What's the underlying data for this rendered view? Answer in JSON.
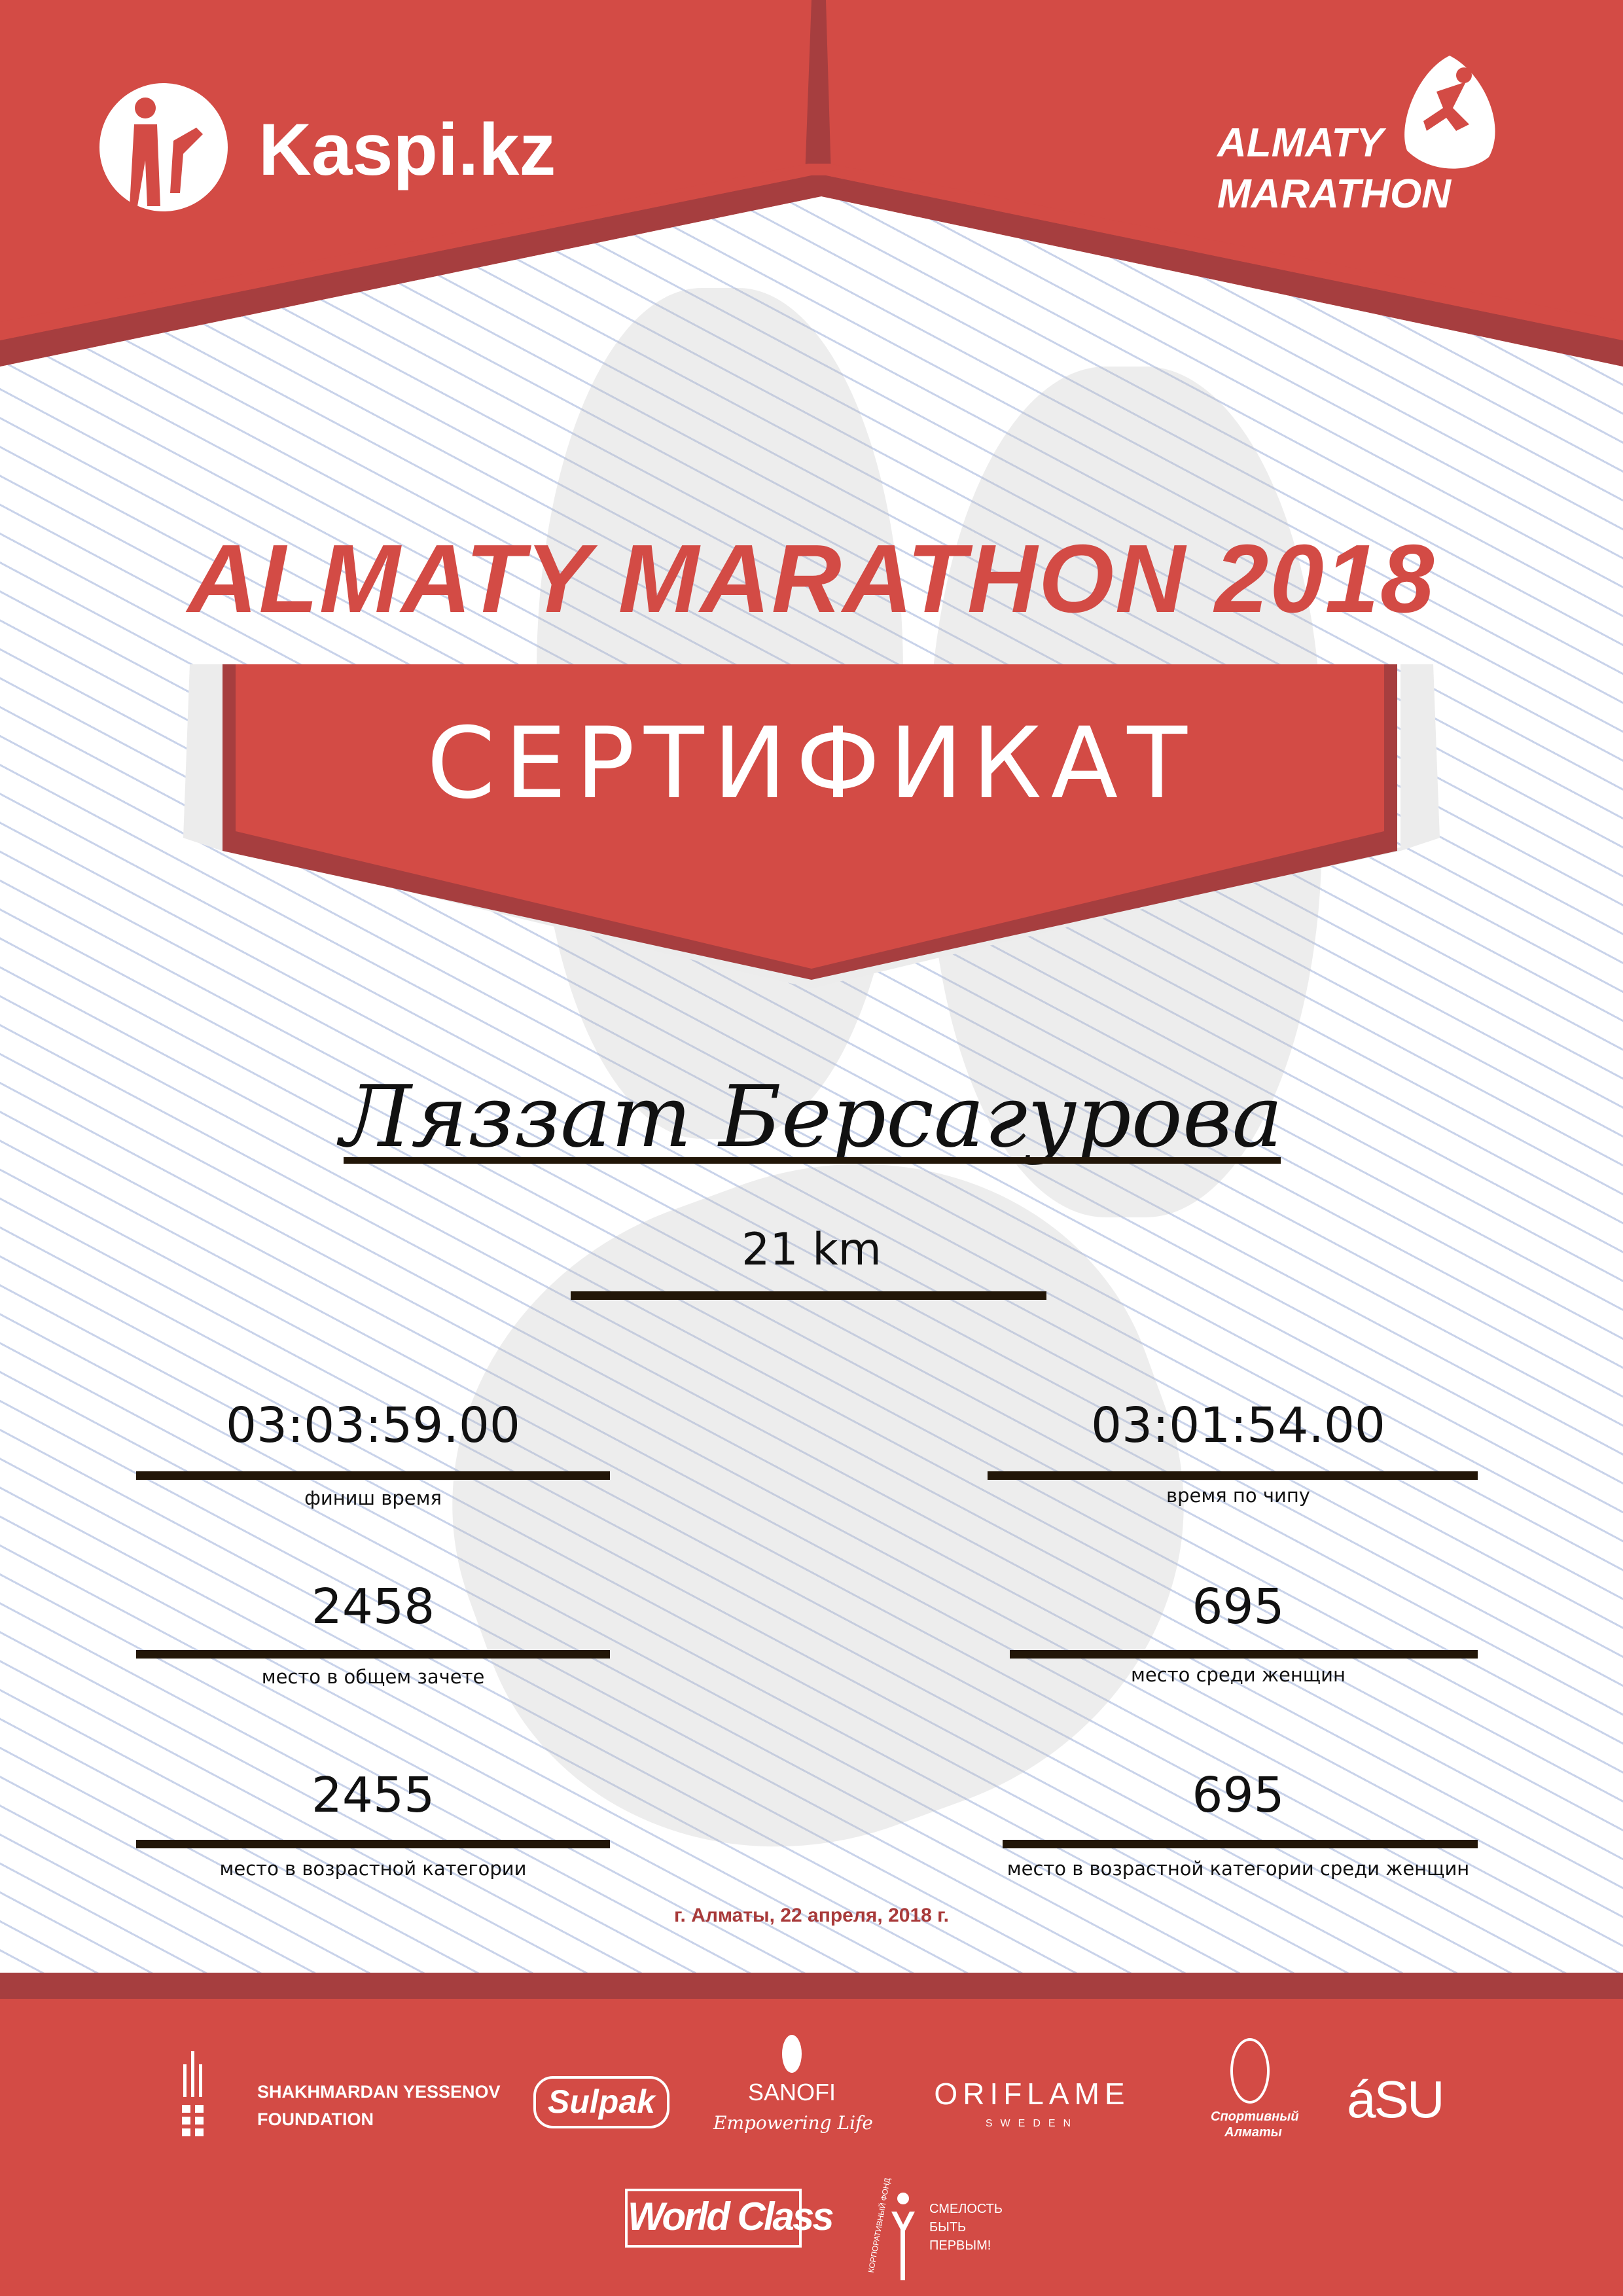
{
  "header": {
    "sponsor_logo": "Kaspi.kz",
    "event_logo": [
      "ALMATY",
      "MARATHON"
    ],
    "colors": {
      "red": "#d34b45",
      "dark_red": "#a63e3f"
    }
  },
  "title": "ALMATY MARATHON 2018",
  "banner": "СЕРТИФИКАТ",
  "participant": {
    "name": "Ляззат Берсагурова",
    "distance": "21 km"
  },
  "results": [
    {
      "value": "03:03:59.00",
      "label": "финиш время"
    },
    {
      "value": "03:01:54.00",
      "label": "время по чипу"
    },
    {
      "value": "2458",
      "label": "место в общем зачете"
    },
    {
      "value": "695",
      "label": "место среди женщин"
    },
    {
      "value": "2455",
      "label": "место в возрастной категории"
    },
    {
      "value": "695",
      "label": "место в возрастной категории среди женщин"
    }
  ],
  "date": "г. Алматы, 22 апреля, 2018 г.",
  "footer": {
    "sponsors": [
      "SHAKHMARDAN YESSENOV",
      "FOUNDATION",
      "Sulpak",
      "SANOFI",
      "Empowering Life",
      "ORIFLAME",
      "SWEDEN",
      "Спортивный Алматы",
      "áSU",
      "World Class",
      "СМЕЛОСТЬ",
      "БЫТЬ",
      "ПЕРВЫМ!",
      "КОРПОРАТИВНЫЙ ФОНД"
    ]
  }
}
